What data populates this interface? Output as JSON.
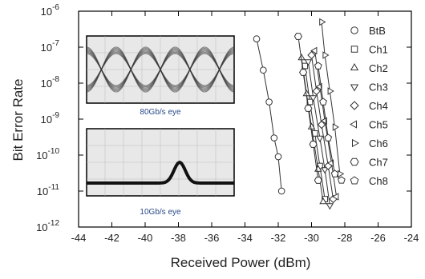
{
  "chart_data": {
    "type": "scatter",
    "x_label": "Received Power (dBm)",
    "y_label": "Bit Error Rate",
    "log_y": true,
    "xlim": [
      -44,
      -24
    ],
    "xticks": [
      -44,
      -42,
      -40,
      -38,
      -36,
      -34,
      -32,
      -30,
      -28,
      -26,
      -24
    ],
    "ylim": [
      1e-12,
      1e-06
    ],
    "yticks": [
      {
        "value": 1e-06,
        "label": "10",
        "exponent": "-6"
      },
      {
        "value": 1e-07,
        "label": "10",
        "exponent": "-7"
      },
      {
        "value": 1e-08,
        "label": "10",
        "exponent": "-8"
      },
      {
        "value": 1e-09,
        "label": "10",
        "exponent": "-9"
      },
      {
        "value": 1e-10,
        "label": "10",
        "exponent": "-10"
      },
      {
        "value": 1e-11,
        "label": "10",
        "exponent": "-11"
      },
      {
        "value": 1e-12,
        "label": "10",
        "exponent": "-12"
      }
    ],
    "legend": "top-right",
    "color": "#333333",
    "series": [
      {
        "name": "BtB",
        "marker": "circle",
        "x": [
          -33.3,
          -32.9,
          -32.55,
          -32.25,
          -32.0,
          -31.8
        ],
        "values": [
          1.7e-07,
          2.3e-08,
          3e-09,
          3e-10,
          9e-11,
          1e-11
        ]
      },
      {
        "name": "Ch1",
        "marker": "square",
        "x": [
          -30.4,
          -30.1,
          -29.8,
          -29.5,
          -29.2
        ],
        "values": [
          3e-08,
          3e-09,
          4e-10,
          5e-11,
          6e-12
        ]
      },
      {
        "name": "Ch2",
        "marker": "triangle-up",
        "x": [
          -30.6,
          -30.3,
          -30.0,
          -29.6,
          -29.3
        ],
        "values": [
          5e-08,
          5e-09,
          6e-10,
          4e-11,
          5e-12
        ]
      },
      {
        "name": "Ch3",
        "marker": "triangle-down",
        "x": [
          -30.2,
          -29.9,
          -29.5,
          -29.2,
          -28.9
        ],
        "values": [
          4e-08,
          4e-09,
          3e-10,
          4e-11,
          4e-12
        ]
      },
      {
        "name": "Ch4",
        "marker": "diamond",
        "x": [
          -30.0,
          -29.7,
          -29.4,
          -29.0,
          -28.7
        ],
        "values": [
          6e-08,
          6e-09,
          7e-10,
          5e-11,
          6e-12
        ]
      },
      {
        "name": "Ch5",
        "marker": "triangle-left",
        "x": [
          -29.8,
          -29.5,
          -29.2,
          -28.8,
          -28.5
        ],
        "values": [
          8e-08,
          8e-09,
          9e-10,
          6e-11,
          7e-12
        ]
      },
      {
        "name": "Ch6",
        "marker": "triangle-right",
        "x": [
          -29.4,
          -29.2,
          -28.9,
          -28.6,
          -28.3
        ],
        "values": [
          5e-07,
          6e-08,
          6e-09,
          6e-10,
          3e-11
        ]
      },
      {
        "name": "Ch7",
        "marker": "hexagon",
        "x": [
          -30.8,
          -30.5,
          -30.2,
          -29.9,
          -29.6
        ],
        "values": [
          2e-07,
          2e-08,
          2e-09,
          2e-10,
          2e-11
        ]
      },
      {
        "name": "Ch8",
        "marker": "pentagon",
        "x": [
          -29.6,
          -29.3,
          -29.0,
          -28.6,
          -28.2
        ],
        "values": [
          3e-08,
          3e-09,
          3e-10,
          3e-11,
          2e-11
        ]
      }
    ],
    "annotations": [
      "80Gb/s eye",
      "10Gb/s eye"
    ]
  }
}
